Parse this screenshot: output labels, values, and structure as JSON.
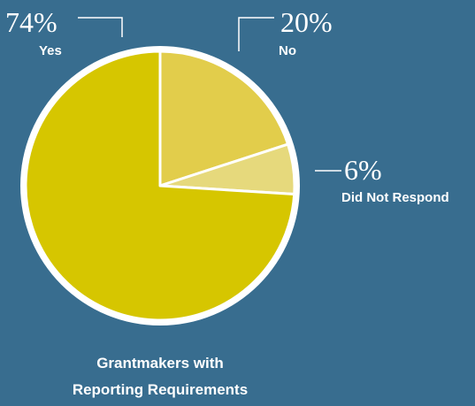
{
  "chart_data": {
    "type": "pie",
    "caption": [
      "Grantmakers with",
      "Reporting Requirements"
    ],
    "slices": [
      {
        "label": "Yes",
        "value": 74,
        "display": "74%",
        "color": "#d6c600"
      },
      {
        "label": "No",
        "value": 20,
        "display": "20%",
        "color": "#e2cd4b"
      },
      {
        "label": "Did Not Respond",
        "value": 6,
        "display": "6%",
        "color": "#e6d97c"
      }
    ]
  },
  "colors": {
    "background": "#386d8f",
    "ring": "#ffffff"
  }
}
